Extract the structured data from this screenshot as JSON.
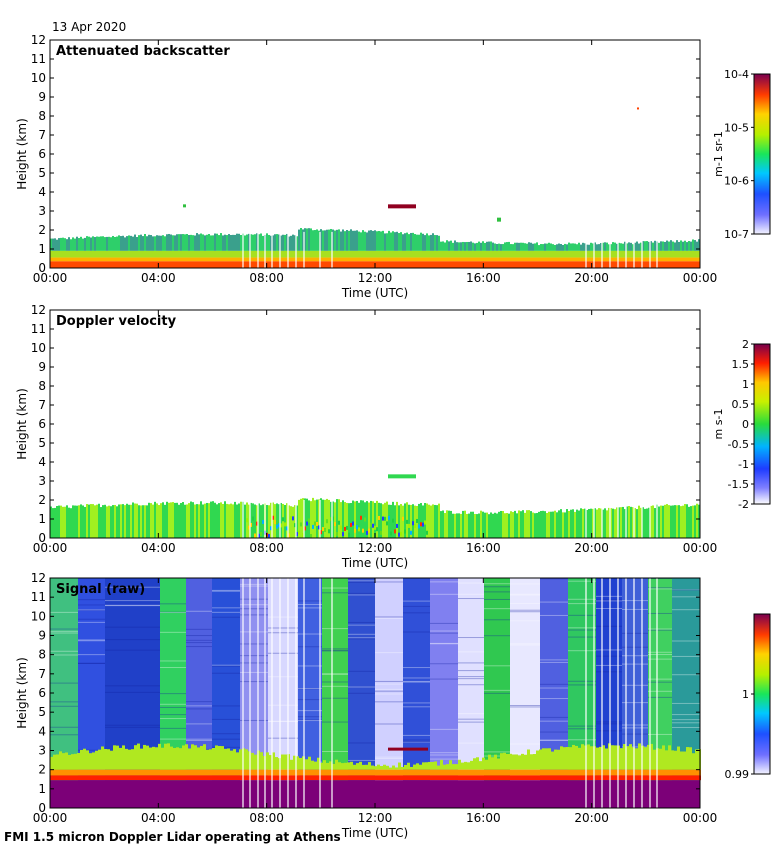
{
  "date": "13 Apr 2020",
  "footer": "FMI 1.5 micron Doppler Lidar operating at Athens",
  "chart_data": [
    {
      "type": "heatmap",
      "title": "Attenuated backscatter",
      "xlabel": "Time (UTC)",
      "ylabel": "Height (km)",
      "xticks": [
        "00:00",
        "04:00",
        "08:00",
        "12:00",
        "16:00",
        "20:00",
        "00:00"
      ],
      "yticks": [
        "0",
        "1",
        "2",
        "3",
        "4",
        "5",
        "6",
        "7",
        "8",
        "9",
        "10",
        "11",
        "12"
      ],
      "ylim": [
        0,
        12
      ],
      "colorbar": {
        "ticks": [
          "10-7",
          "10-6",
          "10-5",
          "10-4"
        ],
        "unit": "m-1 sr-1"
      }
    },
    {
      "type": "heatmap",
      "title": "Doppler velocity",
      "xlabel": "Time (UTC)",
      "ylabel": "Height (km)",
      "xticks": [
        "00:00",
        "04:00",
        "08:00",
        "12:00",
        "16:00",
        "20:00",
        "00:00"
      ],
      "yticks": [
        "0",
        "1",
        "2",
        "3",
        "4",
        "5",
        "6",
        "7",
        "8",
        "9",
        "10",
        "11",
        "12"
      ],
      "ylim": [
        0,
        12
      ],
      "colorbar": {
        "ticks": [
          "-2",
          "-1.5",
          "-1",
          "-0.5",
          "0",
          "0.5",
          "1",
          "1.5",
          "2"
        ],
        "unit": "m s-1",
        "range": [
          -2,
          2
        ]
      }
    },
    {
      "type": "heatmap",
      "title": "Signal (raw)",
      "xlabel": "Time (UTC)",
      "ylabel": "Height (km)",
      "xticks": [
        "00:00",
        "04:00",
        "08:00",
        "12:00",
        "16:00",
        "20:00",
        "00:00"
      ],
      "yticks": [
        "0",
        "1",
        "2",
        "3",
        "4",
        "5",
        "6",
        "7",
        "8",
        "9",
        "10",
        "11",
        "12"
      ],
      "ylim": [
        0,
        12
      ],
      "colorbar": {
        "ticks": [
          "0.99",
          "1"
        ],
        "range": [
          0.99,
          1.01
        ]
      }
    }
  ]
}
